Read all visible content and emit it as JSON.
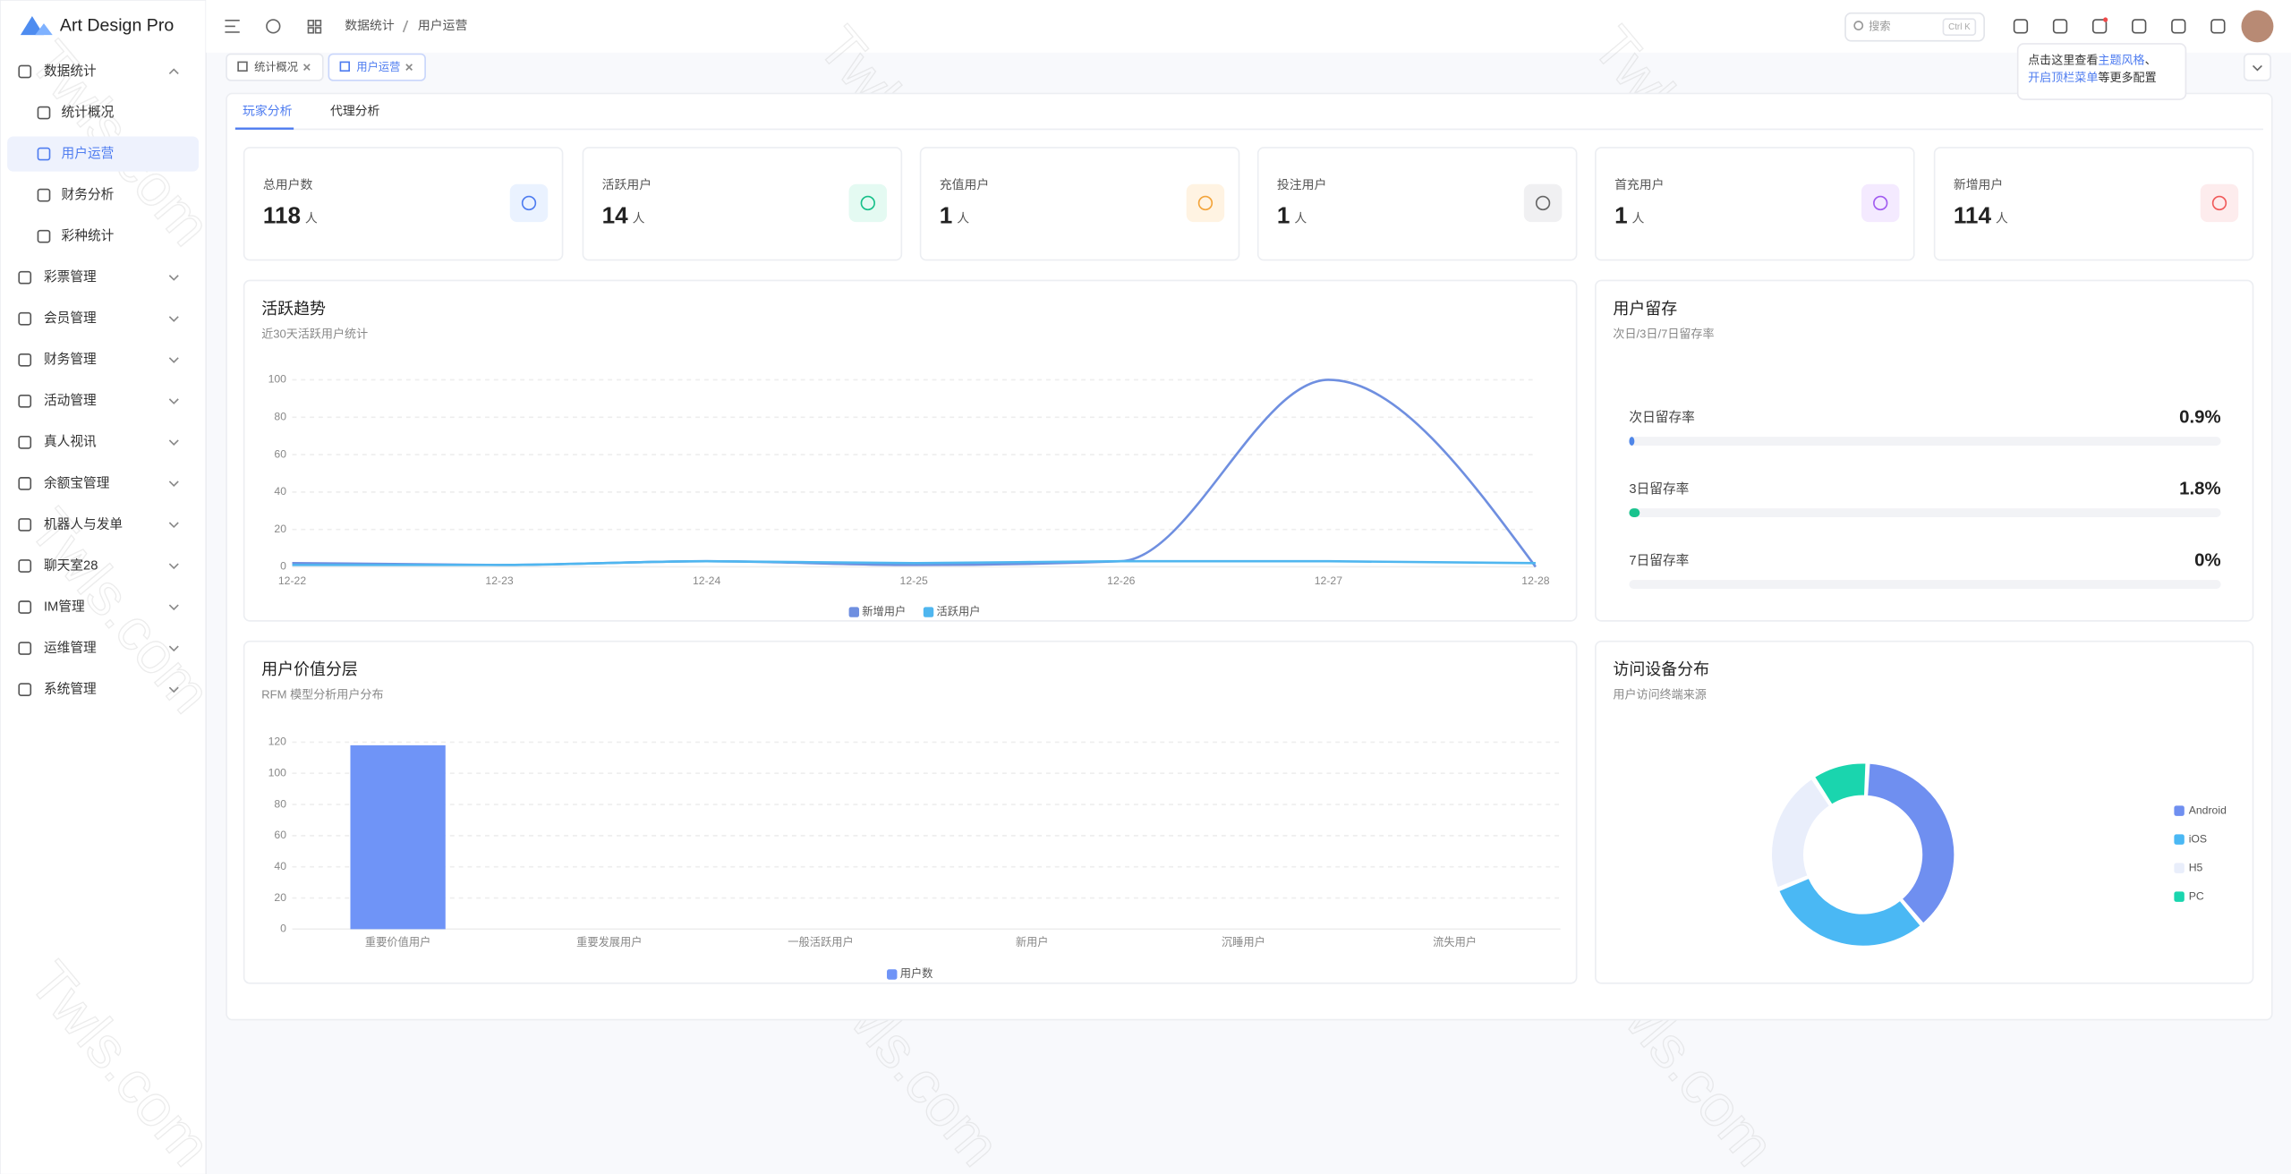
{
  "app": {
    "title": "Art Design Pro"
  },
  "menu": [
    {
      "label": "数据统计",
      "children": [
        "统计概况",
        "用户运营",
        "财务分析",
        "彩种统计"
      ]
    },
    {
      "label": "彩票管理"
    },
    {
      "label": "会员管理"
    },
    {
      "label": "财务管理"
    },
    {
      "label": "活动管理"
    },
    {
      "label": "真人视讯"
    },
    {
      "label": "余额宝管理"
    },
    {
      "label": "机器人与发单"
    },
    {
      "label": "聊天室28"
    },
    {
      "label": "IM管理"
    },
    {
      "label": "运维管理"
    },
    {
      "label": "系统管理"
    }
  ],
  "header": {
    "breadcrumb": [
      "数据统计",
      "用户运营"
    ],
    "search": "搜索",
    "shortcut": "Ctrl K"
  },
  "tooltip": {
    "lines": [
      [
        "点击这里查看",
        "主题风格",
        "、"
      ],
      [
        "开启顶栏菜单",
        "等更多配置"
      ]
    ]
  },
  "tabs": [
    "统计概况",
    "用户运营"
  ],
  "sub_tabs": [
    "玩家分析",
    "代理分析"
  ],
  "cards": [
    {
      "label": "总用户数",
      "value": 118,
      "unit": "人"
    },
    {
      "label": "活跃用户",
      "value": 14,
      "unit": "人"
    },
    {
      "label": "充值用户",
      "value": 1,
      "unit": "人"
    },
    {
      "label": "投注用户",
      "value": 1,
      "unit": "人"
    },
    {
      "label": "首充用户",
      "value": 1,
      "unit": "人"
    },
    {
      "label": "新增用户",
      "value": 114,
      "unit": "人"
    }
  ],
  "chart_data": [
    {
      "type": "line",
      "title": "活跃趋势",
      "subtitle": "近30天活跃用户统计",
      "categories": [
        "12-22",
        "12-23",
        "12-24",
        "12-25",
        "12-26",
        "12-27",
        "12-28"
      ],
      "series": [
        {
          "name": "新增用户",
          "color": "#6f8fe0",
          "values": [
            2,
            1,
            3,
            1,
            3,
            100,
            0
          ]
        },
        {
          "name": "活跃用户",
          "color": "#4fb6ef",
          "values": [
            1,
            1,
            3,
            2,
            3,
            3,
            2
          ]
        }
      ],
      "ylim": [
        0,
        100
      ],
      "yticks": [
        0,
        20,
        40,
        60,
        80,
        100
      ],
      "grid": true
    },
    {
      "type": "bar",
      "title": "用户价值分层",
      "subtitle": "RFM 模型分析用户分布",
      "categories": [
        "重要价值用户",
        "重要发展用户",
        "一般活跃用户",
        "新用户",
        "沉睡用户",
        "流失用户"
      ],
      "series": [
        {
          "name": "用户数",
          "color": "#6f94f7",
          "values": [
            118,
            0,
            0,
            0,
            0,
            0
          ]
        }
      ],
      "ylim": [
        0,
        120
      ],
      "yticks": [
        0,
        20,
        40,
        60,
        80,
        100,
        120
      ],
      "grid": true
    },
    {
      "type": "pie",
      "title": "访问设备分布",
      "subtitle": "用户访问终端来源",
      "categories": [
        "Android",
        "iOS",
        "H5",
        "PC"
      ],
      "values": [
        38,
        30,
        22,
        10
      ],
      "colors": [
        "#6f8ff0",
        "#4ab8f4",
        "#e9eefb",
        "#1ad5ae"
      ]
    }
  ],
  "retention": {
    "title": "用户留存",
    "subtitle": "次日/3日/7日留存率",
    "items": [
      {
        "label": "次日留存率",
        "value": 0.9,
        "value_label": "0.9%",
        "color": "#4f86e8"
      },
      {
        "label": "3日留存率",
        "value": 1.8,
        "value_label": "1.8%",
        "color": "#19c38e"
      },
      {
        "label": "7日留存率",
        "value": 0,
        "value_label": "0%",
        "color": "#4f86e8"
      }
    ]
  },
  "watermark": "Twls.com"
}
